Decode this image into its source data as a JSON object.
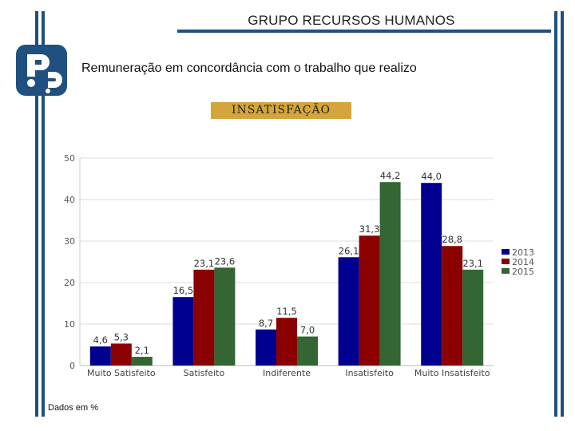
{
  "header": {
    "title": "GRUPO RECURSOS HUMANOS",
    "subtitle": "Remuneração em concordância com o trabalho que realizo",
    "badge": "INSATISFAÇÃO",
    "footnote": "Dados em %"
  },
  "colors": {
    "frame": "#1f5080",
    "badge": "#d4a53a",
    "s2013": "#000090",
    "s2014": "#8b0000",
    "s2015": "#336633"
  },
  "chart_data": {
    "type": "bar",
    "title": "",
    "xlabel": "",
    "ylabel": "",
    "ylim": [
      0,
      50
    ],
    "yticks": [
      "0",
      "10",
      "20",
      "30",
      "40",
      "50"
    ],
    "categories": [
      "Muito Satisfeito",
      "Satisfeito",
      "Indiferente",
      "Insatisfeito",
      "Muito Insatisfeito"
    ],
    "series": [
      {
        "name": "2013",
        "values": [
          4.6,
          16.5,
          8.7,
          26.1,
          44.0
        ],
        "labels": [
          "4,6",
          "16,5",
          "8,7",
          "26,1",
          "44,0"
        ]
      },
      {
        "name": "2014",
        "values": [
          5.3,
          23.1,
          11.5,
          31.3,
          28.8
        ],
        "labels": [
          "5,3",
          "23,1",
          "11,5",
          "31,3",
          "28,8"
        ]
      },
      {
        "name": "2015",
        "values": [
          2.1,
          23.6,
          7.0,
          44.2,
          23.1
        ],
        "labels": [
          "2,1",
          "23,6",
          "7,0",
          "44,2",
          "23,1"
        ]
      }
    ],
    "legend": "right"
  }
}
